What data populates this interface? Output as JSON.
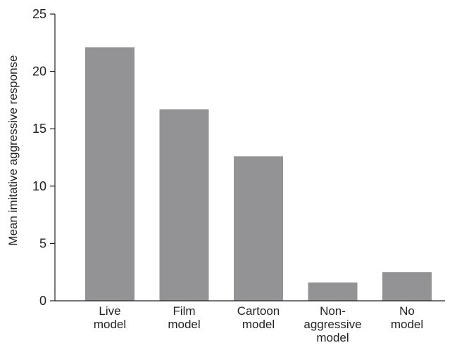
{
  "chart_data": {
    "type": "bar",
    "title": "",
    "xlabel": "",
    "ylabel": "Mean imitative aggressive response",
    "ylim": [
      0,
      25
    ],
    "yticks": [
      0,
      5,
      10,
      15,
      20,
      25
    ],
    "grid": false,
    "bar_color": "#939396",
    "categories": [
      [
        "Live",
        "model"
      ],
      [
        "Film",
        "model"
      ],
      [
        "Cartoon",
        "model"
      ],
      [
        "Non-",
        "aggressive",
        "model"
      ],
      [
        "No",
        "model"
      ]
    ],
    "values": [
      22.1,
      16.7,
      12.6,
      1.6,
      2.5
    ]
  }
}
